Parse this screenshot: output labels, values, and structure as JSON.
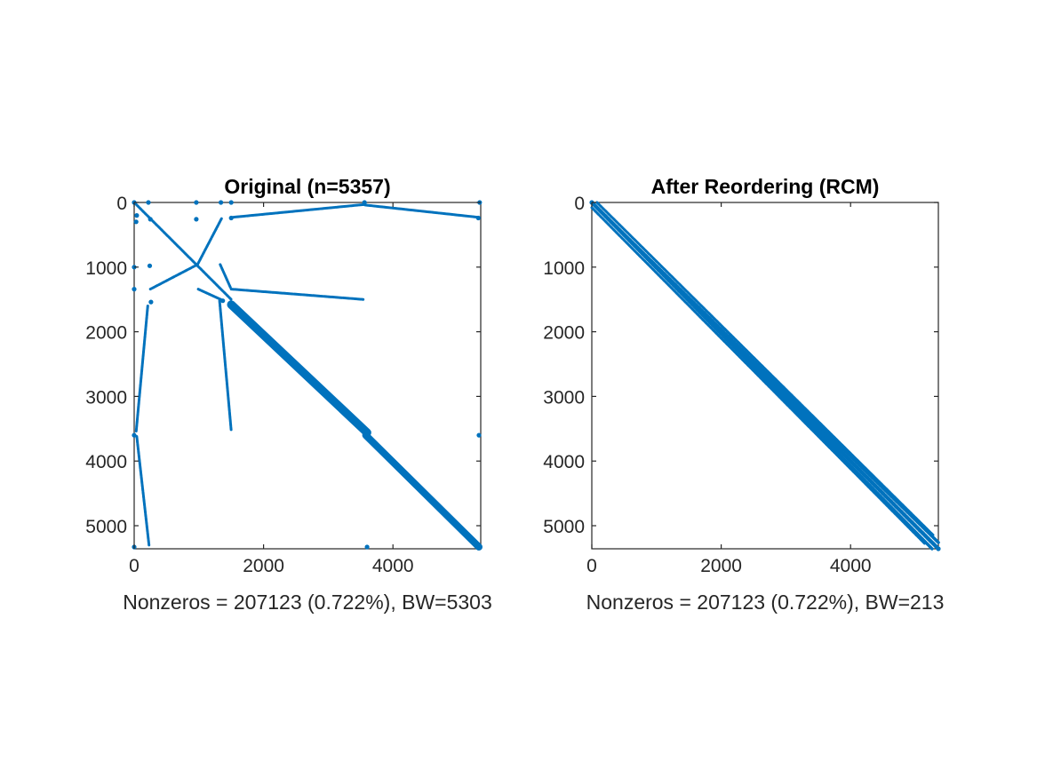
{
  "figure": {
    "background": "#ffffff",
    "axis_color": "#262626",
    "marker_color": "#0072BD"
  },
  "chart_data": [
    {
      "type": "scatter",
      "subtype": "sparsity-pattern",
      "title": "Original (n=5357)",
      "xlabel": "Nonzeros = 207123 (0.722%), BW=5303",
      "ylabel": "",
      "n": 5357,
      "nonzeros": 207123,
      "density_percent": 0.722,
      "bandwidth": 5303,
      "xlim": [
        0,
        5357
      ],
      "ylim": [
        0,
        5357
      ],
      "y_reversed": true,
      "xticks": [
        "0",
        "2000",
        "4000"
      ],
      "yticks": [
        "0",
        "1000",
        "2000",
        "3000",
        "4000",
        "5000"
      ],
      "xtick_values": [
        0,
        2000,
        4000
      ],
      "ytick_values": [
        0,
        1000,
        2000,
        3000,
        4000,
        5000
      ],
      "grid": false,
      "legend": "none",
      "segments": [
        {
          "name": "main-diagonal-upper",
          "from": [
            0,
            0
          ],
          "to": [
            1500,
            1500
          ],
          "width": 40
        },
        {
          "name": "main-diagonal-band",
          "from": [
            1500,
            1580
          ],
          "to": [
            3600,
            3560
          ],
          "width": 130
        },
        {
          "name": "main-diagonal-lower",
          "from": [
            3580,
            3600
          ],
          "to": [
            5330,
            5330
          ],
          "width": 110
        },
        {
          "name": "top-arc-left",
          "from": [
            1520,
            230
          ],
          "to": [
            3570,
            30
          ],
          "width": 15
        },
        {
          "name": "top-arc-right",
          "from": [
            3570,
            40
          ],
          "to": [
            5320,
            230
          ],
          "width": 15
        },
        {
          "name": "branch-to-center-from-top",
          "from": [
            1350,
            250
          ],
          "to": [
            980,
            960
          ],
          "width": 18
        },
        {
          "name": "branch-center-to-left",
          "from": [
            980,
            960
          ],
          "to": [
            250,
            1340
          ],
          "width": 18
        },
        {
          "name": "branch-center-to-lower-right",
          "from": [
            990,
            1340
          ],
          "to": [
            1360,
            1510
          ],
          "width": 18
        },
        {
          "name": "branch-upper-right",
          "from": [
            1330,
            960
          ],
          "to": [
            1490,
            1320
          ],
          "width": 15
        },
        {
          "name": "horizontal-arm",
          "from": [
            1500,
            1340
          ],
          "to": [
            3540,
            1500
          ],
          "width": 15
        },
        {
          "name": "vertical-arm",
          "from": [
            1320,
            1520
          ],
          "to": [
            1500,
            3530
          ],
          "width": 15
        },
        {
          "name": "left-column-upper",
          "from": [
            210,
            1600
          ],
          "to": [
            30,
            3550
          ],
          "width": 15
        },
        {
          "name": "left-column-lower",
          "from": [
            40,
            3620
          ],
          "to": [
            230,
            5300
          ],
          "width": 18
        }
      ],
      "clusters": [
        {
          "x": 0,
          "y": 0
        },
        {
          "x": 40,
          "y": 200
        },
        {
          "x": 30,
          "y": 300
        },
        {
          "x": 0,
          "y": 1000
        },
        {
          "x": 220,
          "y": 0
        },
        {
          "x": 250,
          "y": 260
        },
        {
          "x": 240,
          "y": 980
        },
        {
          "x": 0,
          "y": 1340
        },
        {
          "x": 960,
          "y": 0
        },
        {
          "x": 960,
          "y": 260
        },
        {
          "x": 1340,
          "y": 0
        },
        {
          "x": 1500,
          "y": 0
        },
        {
          "x": 1500,
          "y": 240
        },
        {
          "x": 3560,
          "y": 0
        },
        {
          "x": 5340,
          "y": 0
        },
        {
          "x": 5320,
          "y": 240
        },
        {
          "x": 260,
          "y": 1540
        },
        {
          "x": 0,
          "y": 3600
        },
        {
          "x": 5330,
          "y": 3600
        },
        {
          "x": 3600,
          "y": 5330
        },
        {
          "x": 0,
          "y": 5330
        },
        {
          "x": 5330,
          "y": 5330
        },
        {
          "x": 1540,
          "y": 1600
        },
        {
          "x": 1370,
          "y": 1520
        }
      ]
    },
    {
      "type": "scatter",
      "subtype": "sparsity-pattern",
      "title": "After Reordering (RCM)",
      "xlabel": "Nonzeros = 207123 (0.722%), BW=213",
      "ylabel": "",
      "n": 5357,
      "nonzeros": 207123,
      "density_percent": 0.722,
      "bandwidth": 213,
      "xlim": [
        0,
        5357
      ],
      "ylim": [
        0,
        5357
      ],
      "y_reversed": true,
      "xticks": [
        "0",
        "2000",
        "4000"
      ],
      "yticks": [
        "0",
        "1000",
        "2000",
        "3000",
        "4000",
        "5000"
      ],
      "xtick_values": [
        0,
        2000,
        4000
      ],
      "ytick_values": [
        0,
        1000,
        2000,
        3000,
        4000,
        5000
      ],
      "grid": false,
      "legend": "none",
      "segments": [
        {
          "name": "main-diagonal",
          "from": [
            0,
            0
          ],
          "to": [
            5357,
            5357
          ],
          "width": 60
        },
        {
          "name": "upper-band",
          "from": [
            0,
            0
          ],
          "to": [
            5260,
            5357
          ],
          "width": 50
        },
        {
          "name": "lower-band",
          "from": [
            0,
            0
          ],
          "to": [
            5357,
            5260
          ],
          "width": 50
        },
        {
          "name": "far-upper-band",
          "from": [
            80,
            0
          ],
          "to": [
            5280,
            5150
          ],
          "width": 30
        },
        {
          "name": "far-lower-band",
          "from": [
            0,
            80
          ],
          "to": [
            5150,
            5280
          ],
          "width": 30
        }
      ],
      "clusters": [
        {
          "x": 0,
          "y": 0
        },
        {
          "x": 5357,
          "y": 5357
        }
      ]
    }
  ]
}
